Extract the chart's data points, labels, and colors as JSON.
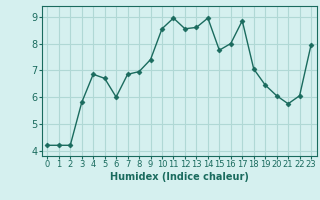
{
  "x": [
    0,
    1,
    2,
    3,
    4,
    5,
    6,
    7,
    8,
    9,
    10,
    11,
    12,
    13,
    14,
    15,
    16,
    17,
    18,
    19,
    20,
    21,
    22,
    23
  ],
  "y": [
    4.2,
    4.2,
    4.2,
    5.8,
    6.85,
    6.7,
    6.0,
    6.85,
    6.95,
    7.4,
    8.55,
    8.95,
    8.55,
    8.6,
    8.95,
    7.75,
    8.0,
    8.85,
    7.05,
    6.45,
    6.05,
    5.75,
    6.05,
    7.95
  ],
  "xlim": [
    -0.5,
    23.5
  ],
  "ylim": [
    3.8,
    9.4
  ],
  "yticks": [
    4,
    5,
    6,
    7,
    8,
    9
  ],
  "xticks": [
    0,
    1,
    2,
    3,
    4,
    5,
    6,
    7,
    8,
    9,
    10,
    11,
    12,
    13,
    14,
    15,
    16,
    17,
    18,
    19,
    20,
    21,
    22,
    23
  ],
  "xlabel": "Humidex (Indice chaleur)",
  "line_color": "#1a6b5e",
  "marker": "D",
  "marker_size": 2.5,
  "bg_color": "#d5f0ef",
  "grid_color": "#b0d8d5",
  "tick_color": "#1a6b5e",
  "label_color": "#1a6b5e",
  "tick_fontsize": 6,
  "xlabel_fontsize": 7
}
